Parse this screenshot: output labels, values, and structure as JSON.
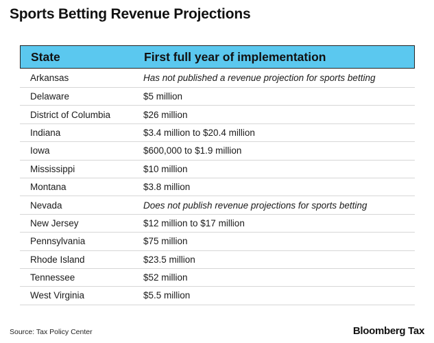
{
  "title": "Sports Betting Revenue Projections",
  "table": {
    "headers": [
      "State",
      "First full year of implementation"
    ],
    "rows": [
      {
        "state": "Arkansas",
        "value": "Has not published a revenue projection for sports betting",
        "italic": true
      },
      {
        "state": "Delaware",
        "value": "$5 million",
        "italic": false
      },
      {
        "state": "District of Columbia",
        "value": "$26 million",
        "italic": false
      },
      {
        "state": "Indiana",
        "value": "$3.4 million to $20.4 million",
        "italic": false
      },
      {
        "state": "Iowa",
        "value": "$600,000 to $1.9 million",
        "italic": false
      },
      {
        "state": "Mississippi",
        "value": "$10 million",
        "italic": false
      },
      {
        "state": "Montana",
        "value": "$3.8 million",
        "italic": false
      },
      {
        "state": "Nevada",
        "value": "Does not publish revenue projections for sports betting",
        "italic": true
      },
      {
        "state": "New Jersey",
        "value": "$12 million to $17 million",
        "italic": false
      },
      {
        "state": "Pennsylvania",
        "value": "$75 million",
        "italic": false
      },
      {
        "state": "Rhode Island",
        "value": "$23.5 million",
        "italic": false
      },
      {
        "state": "Tennessee",
        "value": "$52 million",
        "italic": false
      },
      {
        "state": "West Virginia",
        "value": "$5.5 million",
        "italic": false
      }
    ]
  },
  "source": "Source: Tax Policy Center",
  "brand": "Bloomberg Tax",
  "colors": {
    "header_bg": "#5bc8ef"
  }
}
